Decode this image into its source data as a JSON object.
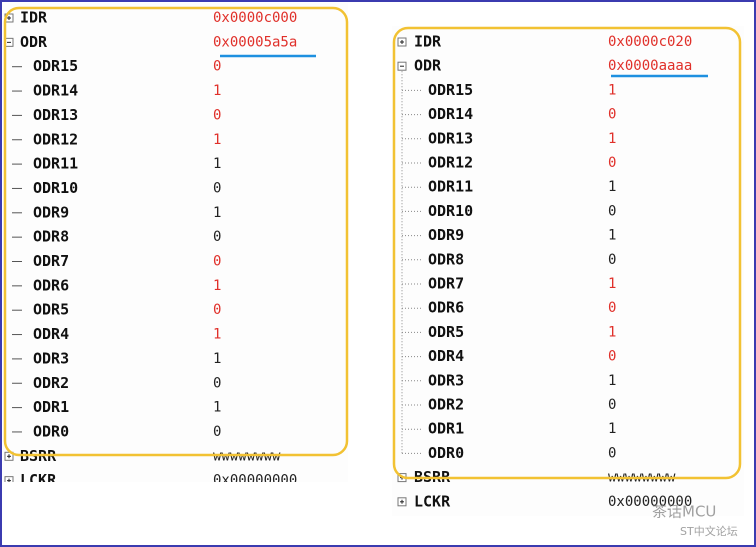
{
  "panels": [
    {
      "registers": [
        {
          "name": "IDR",
          "value": "0x0000c000",
          "changed": true
        },
        {
          "name": "ODR",
          "value": "0x00005a5a",
          "changed": true,
          "fields": [
            {
              "name": "ODR15",
              "value": "0",
              "changed": true
            },
            {
              "name": "ODR14",
              "value": "1",
              "changed": true
            },
            {
              "name": "ODR13",
              "value": "0",
              "changed": true
            },
            {
              "name": "ODR12",
              "value": "1",
              "changed": true
            },
            {
              "name": "ODR11",
              "value": "1",
              "changed": false
            },
            {
              "name": "ODR10",
              "value": "0",
              "changed": false
            },
            {
              "name": "ODR9",
              "value": "1",
              "changed": false
            },
            {
              "name": "ODR8",
              "value": "0",
              "changed": false
            },
            {
              "name": "ODR7",
              "value": "0",
              "changed": true
            },
            {
              "name": "ODR6",
              "value": "1",
              "changed": true
            },
            {
              "name": "ODR5",
              "value": "0",
              "changed": true
            },
            {
              "name": "ODR4",
              "value": "1",
              "changed": true
            },
            {
              "name": "ODR3",
              "value": "1",
              "changed": false
            },
            {
              "name": "ODR2",
              "value": "0",
              "changed": false
            },
            {
              "name": "ODR1",
              "value": "1",
              "changed": false
            },
            {
              "name": "ODR0",
              "value": "0",
              "changed": false
            }
          ]
        },
        {
          "name": "BSRR",
          "value": "wwwwwwww",
          "changed": false
        },
        {
          "name": "LCKR",
          "value": "0x00000000",
          "changed": false
        }
      ]
    },
    {
      "registers": [
        {
          "name": "IDR",
          "value": "0x0000c020",
          "changed": true
        },
        {
          "name": "ODR",
          "value": "0x0000aaaa",
          "changed": true,
          "fields": [
            {
              "name": "ODR15",
              "value": "1",
              "changed": true
            },
            {
              "name": "ODR14",
              "value": "0",
              "changed": true
            },
            {
              "name": "ODR13",
              "value": "1",
              "changed": true
            },
            {
              "name": "ODR12",
              "value": "0",
              "changed": true
            },
            {
              "name": "ODR11",
              "value": "1",
              "changed": false
            },
            {
              "name": "ODR10",
              "value": "0",
              "changed": false
            },
            {
              "name": "ODR9",
              "value": "1",
              "changed": false
            },
            {
              "name": "ODR8",
              "value": "0",
              "changed": false
            },
            {
              "name": "ODR7",
              "value": "1",
              "changed": true
            },
            {
              "name": "ODR6",
              "value": "0",
              "changed": true
            },
            {
              "name": "ODR5",
              "value": "1",
              "changed": true
            },
            {
              "name": "ODR4",
              "value": "0",
              "changed": true
            },
            {
              "name": "ODR3",
              "value": "1",
              "changed": false
            },
            {
              "name": "ODR2",
              "value": "0",
              "changed": false
            },
            {
              "name": "ODR1",
              "value": "1",
              "changed": false
            },
            {
              "name": "ODR0",
              "value": "0",
              "changed": false
            }
          ]
        },
        {
          "name": "BSRR",
          "value": "wwwwwwww",
          "changed": false
        },
        {
          "name": "LCKR",
          "value": "0x00000000",
          "changed": false
        }
      ]
    }
  ],
  "watermark": {
    "brand": "茶话MCU",
    "forum": "ST中文论坛"
  }
}
